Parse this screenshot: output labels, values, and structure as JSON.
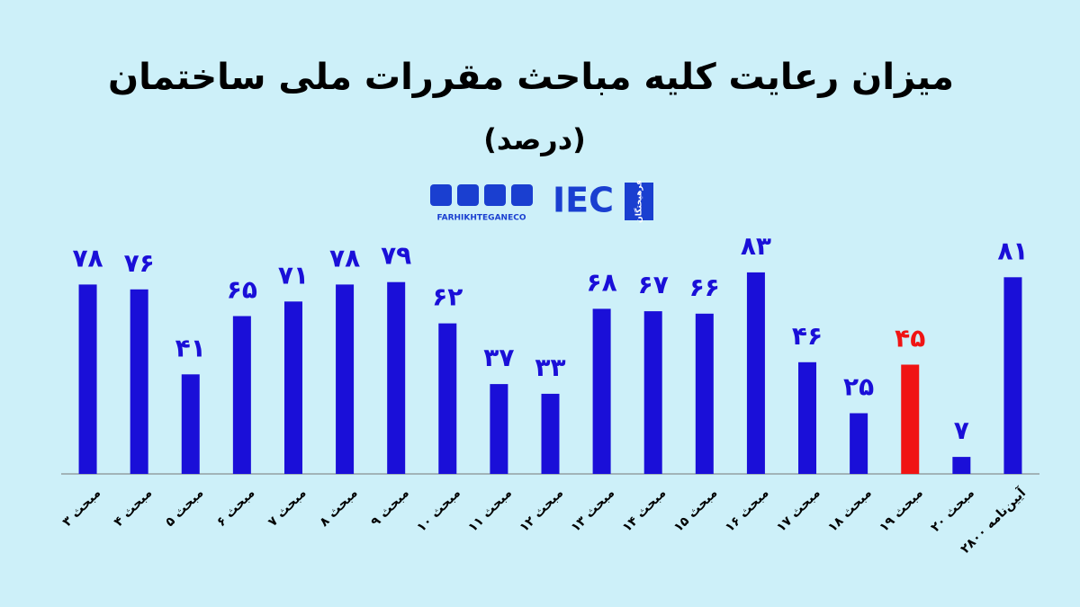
{
  "chart_data": {
    "type": "bar",
    "title": "میزان رعایت کلیه مباحث مقررات ملی ساختمان",
    "subtitle": "(درصد)",
    "logo": {
      "mark": "IEC",
      "handle": "FARHIKHTEGANECO",
      "brand": "فرهیختگان"
    },
    "categories": [
      "مبحث ۳",
      "مبحث ۴",
      "مبحث ۵",
      "مبحث ۶",
      "مبحث ۷",
      "مبحث ۸",
      "مبحث ۹",
      "مبحث ۱۰",
      "مبحث ۱۱",
      "مبحث ۱۲",
      "مبحث ۱۳",
      "مبحث ۱۴",
      "مبحث ۱۵",
      "مبحث ۱۶",
      "مبحث ۱۷",
      "مبحث ۱۸",
      "مبحث ۱۹",
      "مبحث ۲۰",
      "آیین‌نامه ۲۸۰۰"
    ],
    "values": [
      78,
      76,
      41,
      65,
      71,
      78,
      79,
      62,
      37,
      33,
      68,
      67,
      66,
      83,
      46,
      25,
      45,
      7,
      81
    ],
    "value_labels": [
      "۷۸",
      "۷۶",
      "۴۱",
      "۶۵",
      "۷۱",
      "۷۸",
      "۷۹",
      "۶۲",
      "۳۷",
      "۳۳",
      "۶۸",
      "۶۷",
      "۶۶",
      "۸۳",
      "۴۶",
      "۲۵",
      "۴۵",
      "۷",
      "۸۱"
    ],
    "colors": [
      "#1a0fd8",
      "#1a0fd8",
      "#1a0fd8",
      "#1a0fd8",
      "#1a0fd8",
      "#1a0fd8",
      "#1a0fd8",
      "#1a0fd8",
      "#1a0fd8",
      "#1a0fd8",
      "#1a0fd8",
      "#1a0fd8",
      "#1a0fd8",
      "#1a0fd8",
      "#1a0fd8",
      "#1a0fd8",
      "#f01414",
      "#1a0fd8",
      "#1a0fd8"
    ],
    "ylim": [
      0,
      100
    ]
  }
}
